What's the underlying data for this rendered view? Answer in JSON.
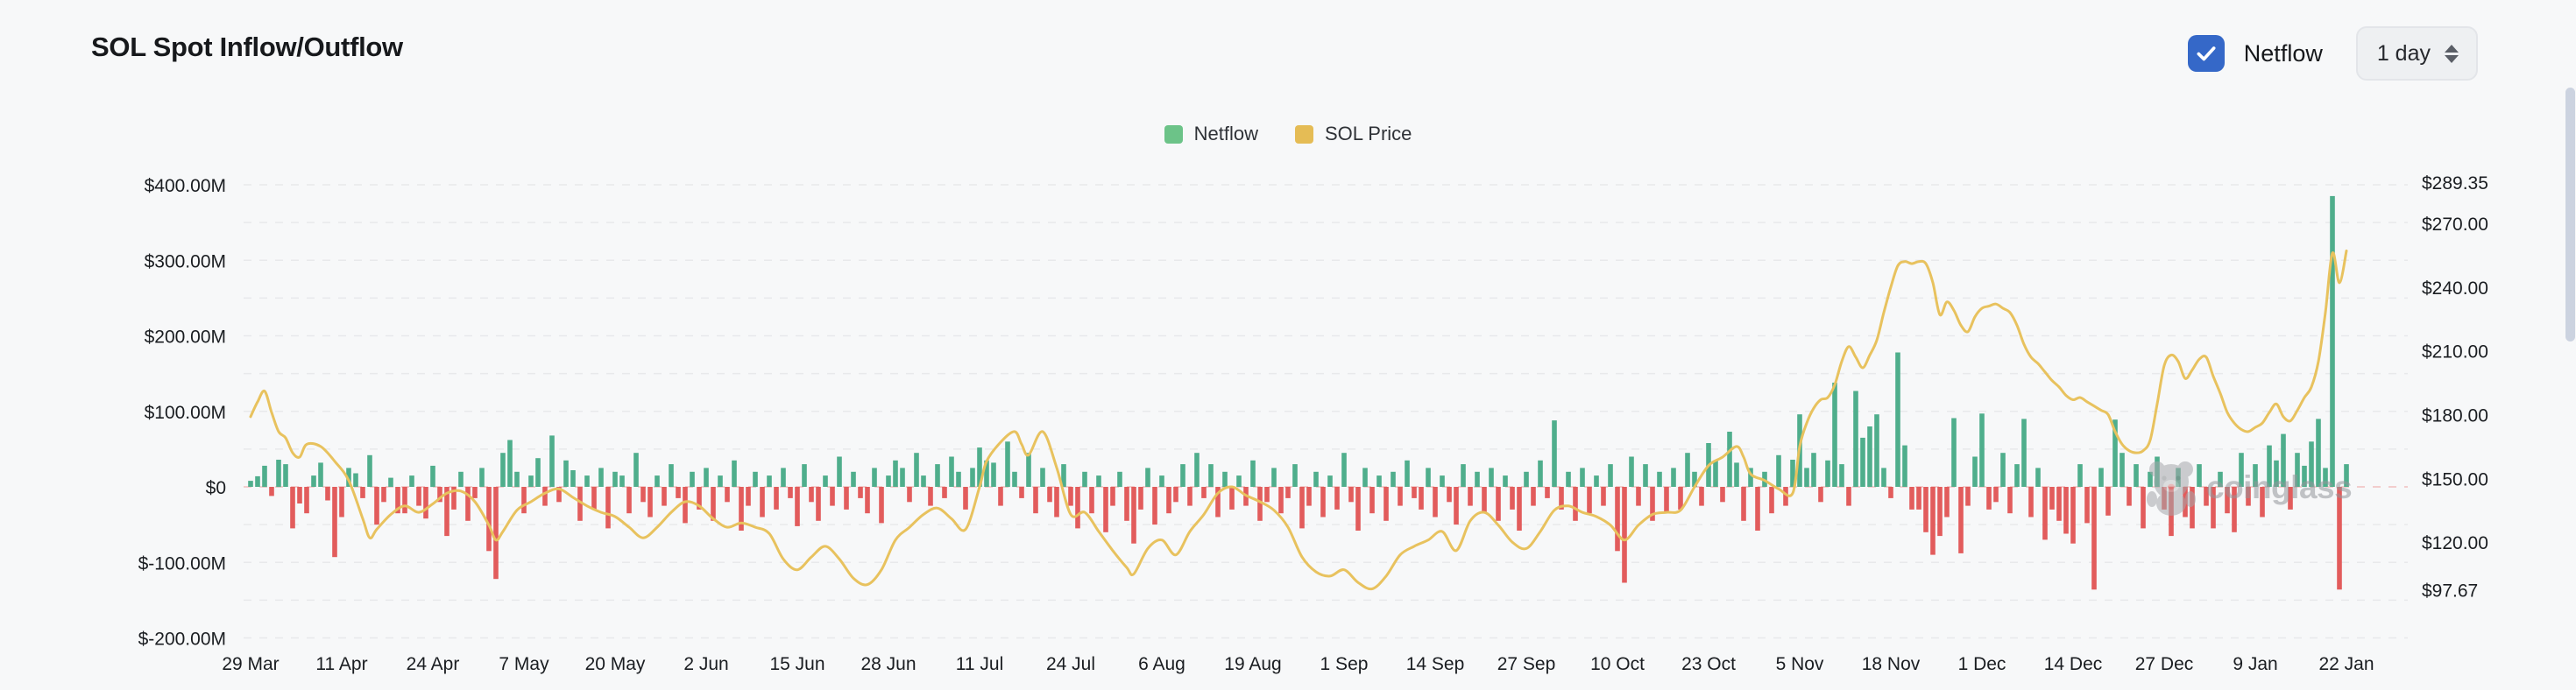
{
  "header": {
    "title": "SOL Spot Inflow/Outflow",
    "netflow_label": "Netflow",
    "netflow_checked": true,
    "interval_value": "1 day"
  },
  "legend": {
    "items": [
      {
        "label": "Netflow",
        "color": "#6cc388"
      },
      {
        "label": "SOL Price",
        "color": "#e5bc55"
      }
    ]
  },
  "watermark": {
    "text": "coinglass"
  },
  "colors": {
    "background": "#f7f8f9",
    "inflow": "#4fae8c",
    "outflow": "#e25c5c",
    "price_line": "#e8c25e",
    "grid": "#e8e9eb",
    "zero_line": "#f2cdcd",
    "axis_text": "#1a1d21",
    "checkbox": "#3568c8",
    "scrollbar": "#ccd3e0",
    "watermark": "#94969b"
  },
  "chart_data": {
    "type": "combo",
    "title": "SOL Spot Inflow/Outflow",
    "x_axis": {
      "labels": [
        "29 Mar",
        "11 Apr",
        "24 Apr",
        "7 May",
        "20 May",
        "2 Jun",
        "15 Jun",
        "28 Jun",
        "11 Jul",
        "24 Jul",
        "6 Aug",
        "19 Aug",
        "1 Sep",
        "14 Sep",
        "27 Sep",
        "10 Oct",
        "23 Oct",
        "5 Nov",
        "18 Nov",
        "1 Dec",
        "14 Dec",
        "27 Dec",
        "9 Jan",
        "22 Jan"
      ],
      "day_indices": [
        0,
        13,
        26,
        39,
        52,
        65,
        78,
        91,
        104,
        117,
        130,
        143,
        156,
        169,
        182,
        195,
        208,
        221,
        234,
        247,
        260,
        273,
        286,
        299
      ]
    },
    "left_axis": {
      "unit": "$M",
      "labels": [
        "$400.00M",
        "$300.00M",
        "$200.00M",
        "$100.00M",
        "$0",
        "$-100.00M",
        "$-200.00M"
      ],
      "values": [
        400,
        300,
        200,
        100,
        0,
        -100,
        -200
      ],
      "range": [
        -200,
        400
      ],
      "grid_step": 50,
      "grid_dashed": true
    },
    "right_axis": {
      "unit": "$",
      "labels": [
        "$289.35",
        "$270.00",
        "$240.00",
        "$210.00",
        "$180.00",
        "$150.00",
        "$120.00",
        "$97.67"
      ],
      "values": [
        289.35,
        270,
        240,
        210,
        180,
        150,
        120,
        97.67
      ],
      "range": [
        97.67,
        289.35
      ]
    },
    "series": [
      {
        "name": "Netflow",
        "type": "bar",
        "unit": "$M",
        "values": [
          8,
          14,
          28,
          -12,
          36,
          30,
          -55,
          -22,
          -35,
          15,
          32,
          -18,
          -93,
          -40,
          25,
          18,
          -15,
          42,
          -50,
          -20,
          12,
          -35,
          -35,
          15,
          -25,
          -42,
          28,
          -20,
          -65,
          -30,
          20,
          -45,
          -15,
          25,
          -85,
          -122,
          45,
          62,
          20,
          -35,
          15,
          38,
          -25,
          68,
          -20,
          35,
          22,
          -45,
          15,
          -30,
          25,
          -55,
          20,
          15,
          -35,
          45,
          -20,
          -40,
          15,
          -25,
          30,
          -15,
          -48,
          20,
          -30,
          25,
          -45,
          15,
          -20,
          35,
          -58,
          -25,
          20,
          -40,
          15,
          -30,
          25,
          -15,
          -52,
          30,
          -20,
          -45,
          15,
          -25,
          40,
          -30,
          20,
          -15,
          -35,
          25,
          -48,
          15,
          35,
          25,
          -20,
          45,
          15,
          -25,
          30,
          -15,
          40,
          20,
          -30,
          25,
          52,
          35,
          32,
          -25,
          60,
          20,
          -15,
          45,
          -35,
          25,
          -20,
          -40,
          30,
          -25,
          -55,
          20,
          -35,
          15,
          -60,
          -25,
          20,
          -45,
          -75,
          -30,
          25,
          -50,
          15,
          -35,
          -20,
          30,
          -25,
          45,
          -15,
          30,
          -40,
          20,
          -30,
          15,
          -25,
          35,
          -45,
          -20,
          25,
          -35,
          -15,
          30,
          -55,
          -25,
          20,
          -40,
          15,
          -30,
          45,
          -20,
          -58,
          25,
          -35,
          15,
          -45,
          20,
          -25,
          35,
          -15,
          -30,
          25,
          -40,
          15,
          -20,
          -50,
          30,
          -25,
          20,
          -35,
          25,
          -45,
          15,
          -30,
          -58,
          20,
          -25,
          35,
          -15,
          88,
          -30,
          20,
          -45,
          25,
          -35,
          15,
          -25,
          30,
          -85,
          -127,
          40,
          -25,
          30,
          -45,
          20,
          -35,
          25,
          -30,
          45,
          20,
          -25,
          58,
          35,
          -20,
          73,
          32,
          -45,
          25,
          -58,
          20,
          -35,
          42,
          -25,
          36,
          96,
          25,
          45,
          -20,
          35,
          138,
          30,
          -25,
          127,
          65,
          80,
          96,
          25,
          -15,
          178,
          55,
          -30,
          -30,
          -60,
          -90,
          -65,
          -40,
          91,
          -88,
          -25,
          40,
          97,
          -30,
          -20,
          45,
          -35,
          30,
          90,
          -40,
          25,
          -70,
          -30,
          -45,
          -62,
          -75,
          30,
          -48,
          -136,
          25,
          -38,
          89,
          45,
          -25,
          30,
          -55,
          20,
          40,
          -30,
          -65,
          25,
          -40,
          -55,
          30,
          -25,
          -55,
          20,
          -35,
          -60,
          45,
          -25,
          30,
          -40,
          55,
          35,
          70,
          -30,
          45,
          28,
          60,
          90,
          25,
          385,
          -136,
          30
        ]
      },
      {
        "name": "SOL Price",
        "type": "line",
        "unit": "$",
        "points": [
          [
            0,
            179
          ],
          [
            1,
            186
          ],
          [
            2,
            191
          ],
          [
            3,
            181
          ],
          [
            4,
            172
          ],
          [
            5,
            169
          ],
          [
            6,
            162
          ],
          [
            7,
            160
          ],
          [
            8,
            166
          ],
          [
            10,
            165
          ],
          [
            12,
            158
          ],
          [
            14,
            149
          ],
          [
            16,
            131
          ],
          [
            17,
            122
          ],
          [
            18,
            126
          ],
          [
            20,
            133
          ],
          [
            22,
            137
          ],
          [
            24,
            134
          ],
          [
            26,
            138
          ],
          [
            28,
            143
          ],
          [
            30,
            144
          ],
          [
            32,
            139
          ],
          [
            34,
            128
          ],
          [
            35,
            121
          ],
          [
            36,
            125
          ],
          [
            38,
            135
          ],
          [
            40,
            139
          ],
          [
            42,
            143
          ],
          [
            44,
            145
          ],
          [
            46,
            141
          ],
          [
            48,
            137
          ],
          [
            50,
            134
          ],
          [
            52,
            132
          ],
          [
            54,
            127
          ],
          [
            56,
            122
          ],
          [
            58,
            127
          ],
          [
            60,
            134
          ],
          [
            62,
            139
          ],
          [
            64,
            137
          ],
          [
            66,
            131
          ],
          [
            68,
            127
          ],
          [
            70,
            129
          ],
          [
            72,
            127
          ],
          [
            74,
            124
          ],
          [
            76,
            112
          ],
          [
            78,
            107
          ],
          [
            80,
            113
          ],
          [
            82,
            118
          ],
          [
            84,
            112
          ],
          [
            86,
            103
          ],
          [
            88,
            100
          ],
          [
            90,
            107
          ],
          [
            92,
            121
          ],
          [
            94,
            127
          ],
          [
            96,
            133
          ],
          [
            98,
            136
          ],
          [
            100,
            131
          ],
          [
            102,
            126
          ],
          [
            104,
            146
          ],
          [
            105,
            158
          ],
          [
            107,
            167
          ],
          [
            109,
            172
          ],
          [
            110,
            166
          ],
          [
            111,
            161
          ],
          [
            113,
            172
          ],
          [
            115,
            155
          ],
          [
            117,
            133
          ],
          [
            119,
            134
          ],
          [
            121,
            125
          ],
          [
            123,
            116
          ],
          [
            125,
            108
          ],
          [
            126,
            105
          ],
          [
            128,
            117
          ],
          [
            130,
            121
          ],
          [
            132,
            114
          ],
          [
            134,
            125
          ],
          [
            136,
            133
          ],
          [
            138,
            143
          ],
          [
            140,
            146
          ],
          [
            142,
            142
          ],
          [
            144,
            139
          ],
          [
            146,
            135
          ],
          [
            148,
            127
          ],
          [
            150,
            113
          ],
          [
            152,
            106
          ],
          [
            154,
            104
          ],
          [
            156,
            107
          ],
          [
            158,
            101
          ],
          [
            160,
            98
          ],
          [
            162,
            104
          ],
          [
            164,
            114
          ],
          [
            166,
            118
          ],
          [
            168,
            121
          ],
          [
            170,
            125
          ],
          [
            172,
            116
          ],
          [
            174,
            130
          ],
          [
            176,
            134
          ],
          [
            178,
            128
          ],
          [
            180,
            120
          ],
          [
            182,
            117
          ],
          [
            184,
            125
          ],
          [
            186,
            135
          ],
          [
            188,
            137
          ],
          [
            190,
            134
          ],
          [
            192,
            132
          ],
          [
            194,
            128
          ],
          [
            196,
            121
          ],
          [
            198,
            128
          ],
          [
            200,
            133
          ],
          [
            202,
            134
          ],
          [
            204,
            135
          ],
          [
            206,
            146
          ],
          [
            208,
            156
          ],
          [
            210,
            160
          ],
          [
            212,
            165
          ],
          [
            213,
            160
          ],
          [
            214,
            152
          ],
          [
            216,
            149
          ],
          [
            218,
            145
          ],
          [
            220,
            143
          ],
          [
            221,
            165
          ],
          [
            222,
            176
          ],
          [
            223,
            183
          ],
          [
            224,
            187
          ],
          [
            225,
            188
          ],
          [
            226,
            194
          ],
          [
            227,
            205
          ],
          [
            228,
            212
          ],
          [
            229,
            207
          ],
          [
            230,
            202
          ],
          [
            231,
            208
          ],
          [
            232,
            215
          ],
          [
            233,
            228
          ],
          [
            234,
            240
          ],
          [
            235,
            250
          ],
          [
            236,
            252
          ],
          [
            237,
            251
          ],
          [
            238,
            252
          ],
          [
            239,
            251
          ],
          [
            240,
            242
          ],
          [
            241,
            227
          ],
          [
            242,
            233
          ],
          [
            243,
            229
          ],
          [
            244,
            222
          ],
          [
            245,
            219
          ],
          [
            246,
            226
          ],
          [
            247,
            230
          ],
          [
            248,
            231
          ],
          [
            249,
            232
          ],
          [
            250,
            230
          ],
          [
            251,
            228
          ],
          [
            252,
            222
          ],
          [
            253,
            213
          ],
          [
            254,
            207
          ],
          [
            255,
            204
          ],
          [
            256,
            200
          ],
          [
            257,
            196
          ],
          [
            258,
            193
          ],
          [
            259,
            189
          ],
          [
            260,
            187
          ],
          [
            261,
            188
          ],
          [
            262,
            186
          ],
          [
            263,
            184
          ],
          [
            264,
            182
          ],
          [
            265,
            180
          ],
          [
            266,
            172
          ],
          [
            267,
            166
          ],
          [
            268,
            163
          ],
          [
            269,
            162
          ],
          [
            270,
            163
          ],
          [
            271,
            168
          ],
          [
            272,
            185
          ],
          [
            273,
            203
          ],
          [
            274,
            208
          ],
          [
            275,
            205
          ],
          [
            276,
            197
          ],
          [
            277,
            201
          ],
          [
            278,
            206
          ],
          [
            279,
            207
          ],
          [
            280,
            198
          ],
          [
            281,
            190
          ],
          [
            282,
            181
          ],
          [
            283,
            176
          ],
          [
            284,
            173
          ],
          [
            285,
            172
          ],
          [
            286,
            174
          ],
          [
            287,
            176
          ],
          [
            288,
            181
          ],
          [
            289,
            185
          ],
          [
            290,
            179
          ],
          [
            291,
            177
          ],
          [
            292,
            182
          ],
          [
            293,
            188
          ],
          [
            294,
            193
          ],
          [
            295,
            205
          ],
          [
            296,
            228
          ],
          [
            297,
            256
          ],
          [
            298,
            242
          ],
          [
            299,
            257
          ]
        ]
      }
    ]
  }
}
